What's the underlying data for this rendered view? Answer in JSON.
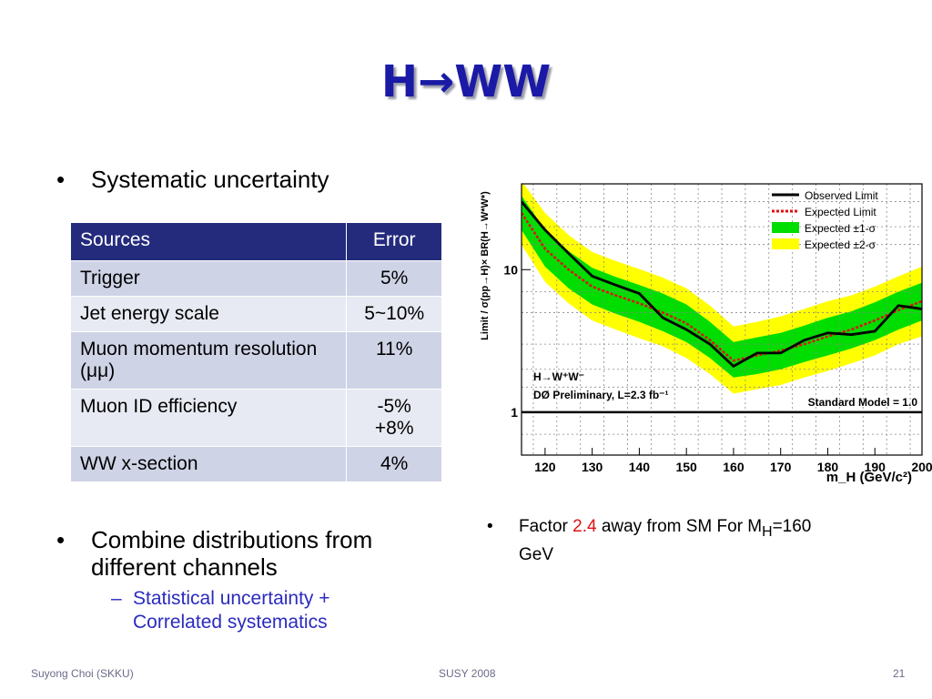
{
  "slide": {
    "title": "H→WW",
    "bullet1": "Systematic uncertainty",
    "table": {
      "headers": [
        "Sources",
        "Error"
      ],
      "rows": [
        {
          "source": "Trigger",
          "error": "5%"
        },
        {
          "source": "Jet energy scale",
          "error": "5~10%"
        },
        {
          "source": "Muon momentum resolution (μμ)",
          "error": "11%"
        },
        {
          "source": "Muon ID efficiency",
          "error": "-5% +8%"
        },
        {
          "source": "WW x-section",
          "error": "4%"
        }
      ]
    },
    "bullet2": "Combine distributions from different channels",
    "sub_bullet": "Statistical uncertainty + Correlated systematics",
    "factor": {
      "prefix": "Factor ",
      "value": "2.4",
      "middle": " away from SM For M",
      "subscript": "H",
      "suffix": "=160 GeV"
    },
    "footer": {
      "left": "Suyong Choi (SKKU)",
      "center": "SUSY 2008",
      "page": "21"
    },
    "colors": {
      "title": "#1a1aa6",
      "header_bg": "#242b7c",
      "row_odd": "#cfd3e6",
      "row_even": "#e8eaf3",
      "sub_bullet": "#2b2bbf",
      "highlight": "#e01010"
    }
  },
  "chart_data": {
    "type": "line",
    "xlabel": "m_H (GeV/c²)",
    "ylabel": "Limit / σ(pp→H)× BR(H→W*W*)",
    "y_scale": "log",
    "xlim": [
      115,
      200
    ],
    "ylim": [
      0.5,
      40
    ],
    "x_ticks": [
      120,
      130,
      140,
      150,
      160,
      170,
      180,
      190,
      200
    ],
    "y_ticks": [
      1,
      10
    ],
    "legend": [
      {
        "label": "Observed Limit",
        "color": "#000000"
      },
      {
        "label": "Expected Limit",
        "color": "#e01010"
      },
      {
        "label": "Expected ±1-σ",
        "color": "#00dd00"
      },
      {
        "label": "Expected ±2-σ",
        "color": "#ffff00"
      }
    ],
    "legend_position": "top-right",
    "annotations": [
      "H→W⁺W⁻",
      "DØ Preliminary, L=2.3 fb⁻¹",
      "Standard Model = 1.0"
    ],
    "series": [
      {
        "name": "Observed Limit",
        "x": [
          115,
          120,
          125,
          130,
          135,
          140,
          145,
          150,
          155,
          160,
          165,
          170,
          175,
          180,
          185,
          190,
          195,
          200
        ],
        "values": [
          30,
          19,
          13,
          9,
          7.8,
          6.8,
          4.6,
          3.8,
          3.0,
          2.1,
          2.6,
          2.6,
          3.2,
          3.6,
          3.5,
          3.7,
          5.6,
          5.3
        ]
      },
      {
        "name": "Expected Limit",
        "x": [
          115,
          120,
          125,
          130,
          135,
          140,
          145,
          150,
          155,
          160,
          165,
          170,
          175,
          180,
          185,
          190,
          195,
          200
        ],
        "values": [
          25,
          14,
          10,
          7.6,
          6.6,
          5.8,
          5.0,
          4.2,
          3.2,
          2.3,
          2.5,
          2.7,
          3.0,
          3.4,
          3.8,
          4.4,
          5.2,
          6.0
        ]
      },
      {
        "name": "Expected ±1-σ",
        "x": [
          115,
          120,
          125,
          130,
          135,
          140,
          145,
          150,
          155,
          160,
          165,
          170,
          175,
          180,
          185,
          190,
          195,
          200
        ],
        "low": [
          19,
          10.5,
          7.4,
          5.7,
          4.9,
          4.3,
          3.7,
          3.1,
          2.4,
          1.75,
          1.85,
          2.0,
          2.25,
          2.5,
          2.8,
          3.2,
          3.8,
          4.4
        ],
        "high": [
          33,
          19,
          13.5,
          10.3,
          8.9,
          7.8,
          6.8,
          5.7,
          4.3,
          3.1,
          3.35,
          3.6,
          4.05,
          4.6,
          5.1,
          5.9,
          7.0,
          8.1
        ]
      },
      {
        "name": "Expected ±2-σ",
        "x": [
          115,
          120,
          125,
          130,
          135,
          140,
          145,
          150,
          155,
          160,
          165,
          170,
          175,
          180,
          185,
          190,
          195,
          200
        ],
        "low": [
          15,
          8.2,
          5.8,
          4.4,
          3.8,
          3.3,
          2.9,
          2.4,
          1.85,
          1.35,
          1.45,
          1.55,
          1.75,
          1.95,
          2.2,
          2.5,
          3.0,
          3.4
        ],
        "high": [
          42,
          25,
          17.5,
          13.3,
          11.5,
          10.1,
          8.8,
          7.4,
          5.6,
          4.0,
          4.3,
          4.7,
          5.3,
          6.0,
          6.6,
          7.6,
          9.0,
          10.5
        ]
      },
      {
        "name": "Standard Model",
        "x": [
          115,
          200
        ],
        "values": [
          1,
          1
        ]
      }
    ]
  }
}
